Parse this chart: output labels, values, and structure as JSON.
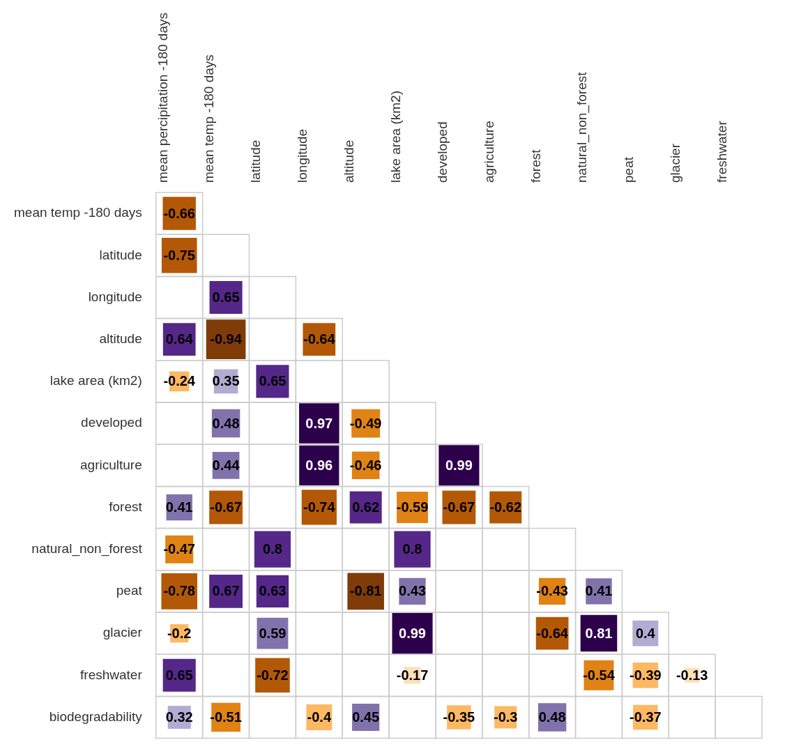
{
  "chart_data": {
    "type": "heatmap",
    "categories": [
      "mean percipitation -180 days",
      "mean temp -180 days",
      "latitude",
      "longitude",
      "altitude",
      "lake area (km2)",
      "developed",
      "agriculture",
      "forest",
      "natural_non_forest",
      "peat",
      "glacier",
      "freshwater"
    ],
    "y_categories": [
      "mean temp -180 days",
      "latitude",
      "longitude",
      "altitude",
      "lake area (km2)",
      "developed",
      "agriculture",
      "forest",
      "natural_non_forest",
      "peat",
      "glacier",
      "freshwater",
      "biodegradability"
    ],
    "cells": [
      [
        -0.66,
        null,
        null,
        null,
        null,
        null,
        null,
        null,
        null,
        null,
        null,
        null,
        null
      ],
      [
        -0.75,
        null,
        null,
        null,
        null,
        null,
        null,
        null,
        null,
        null,
        null,
        null,
        null
      ],
      [
        null,
        0.65,
        null,
        null,
        null,
        null,
        null,
        null,
        null,
        null,
        null,
        null,
        null
      ],
      [
        0.64,
        -0.94,
        null,
        -0.64,
        null,
        null,
        null,
        null,
        null,
        null,
        null,
        null,
        null
      ],
      [
        -0.24,
        0.35,
        0.65,
        null,
        null,
        null,
        null,
        null,
        null,
        null,
        null,
        null,
        null
      ],
      [
        null,
        0.48,
        null,
        0.97,
        -0.49,
        null,
        null,
        null,
        null,
        null,
        null,
        null,
        null
      ],
      [
        null,
        0.44,
        null,
        0.96,
        -0.46,
        null,
        0.99,
        null,
        null,
        null,
        null,
        null,
        null
      ],
      [
        0.41,
        -0.67,
        null,
        -0.74,
        0.62,
        -0.59,
        -0.67,
        -0.62,
        null,
        null,
        null,
        null,
        null
      ],
      [
        -0.47,
        null,
        0.8,
        null,
        null,
        0.8,
        null,
        null,
        null,
        null,
        null,
        null,
        null
      ],
      [
        -0.78,
        0.67,
        0.63,
        null,
        -0.81,
        0.43,
        null,
        null,
        -0.43,
        0.41,
        null,
        null,
        null
      ],
      [
        -0.2,
        null,
        0.59,
        null,
        null,
        0.99,
        null,
        null,
        -0.64,
        0.81,
        0.4,
        null,
        null
      ],
      [
        0.65,
        null,
        -0.72,
        null,
        null,
        -0.17,
        null,
        null,
        null,
        -0.54,
        -0.39,
        -0.13,
        null
      ],
      [
        0.32,
        -0.51,
        null,
        -0.4,
        0.45,
        null,
        -0.35,
        -0.3,
        0.48,
        null,
        -0.37,
        null,
        null
      ]
    ],
    "data_labels": true
  }
}
